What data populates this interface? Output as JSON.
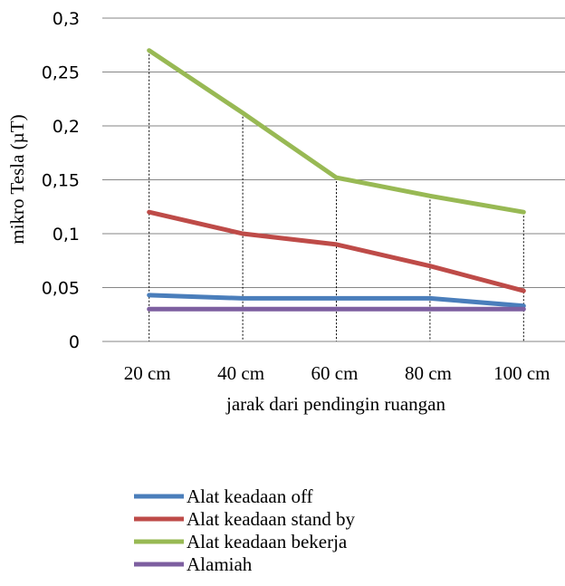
{
  "chart_data": {
    "type": "line",
    "title": "",
    "xlabel": "jarak dari pendingin ruangan",
    "ylabel": "mikro Tesla (µT)",
    "categories": [
      "20 cm",
      "40 cm",
      "60 cm",
      "80 cm",
      "100 cm"
    ],
    "ylim": [
      0,
      0.3
    ],
    "yticks": [
      0,
      0.05,
      0.1,
      0.15,
      0.2,
      0.25,
      0.3
    ],
    "ytick_labels": [
      "0",
      "0,05",
      "0,1",
      "0,15",
      "0,2",
      "0,25",
      "0,3"
    ],
    "grid": "horizontal",
    "drop_lines": true,
    "legend_position": "bottom",
    "series": [
      {
        "name": "Alat keadaan off",
        "color": "#4a7ebb",
        "values": [
          0.043,
          0.04,
          0.04,
          0.04,
          0.033
        ]
      },
      {
        "name": "Alat keadaan stand by",
        "color": "#be4b48",
        "values": [
          0.12,
          0.1,
          0.09,
          0.07,
          0.047
        ]
      },
      {
        "name": "Alat keadaan bekerja",
        "color": "#98b954",
        "values": [
          0.27,
          0.212,
          0.152,
          0.135,
          0.12
        ]
      },
      {
        "name": "Alamiah",
        "color": "#7d5fa0",
        "values": [
          0.03,
          0.03,
          0.03,
          0.03,
          0.03
        ]
      }
    ]
  }
}
